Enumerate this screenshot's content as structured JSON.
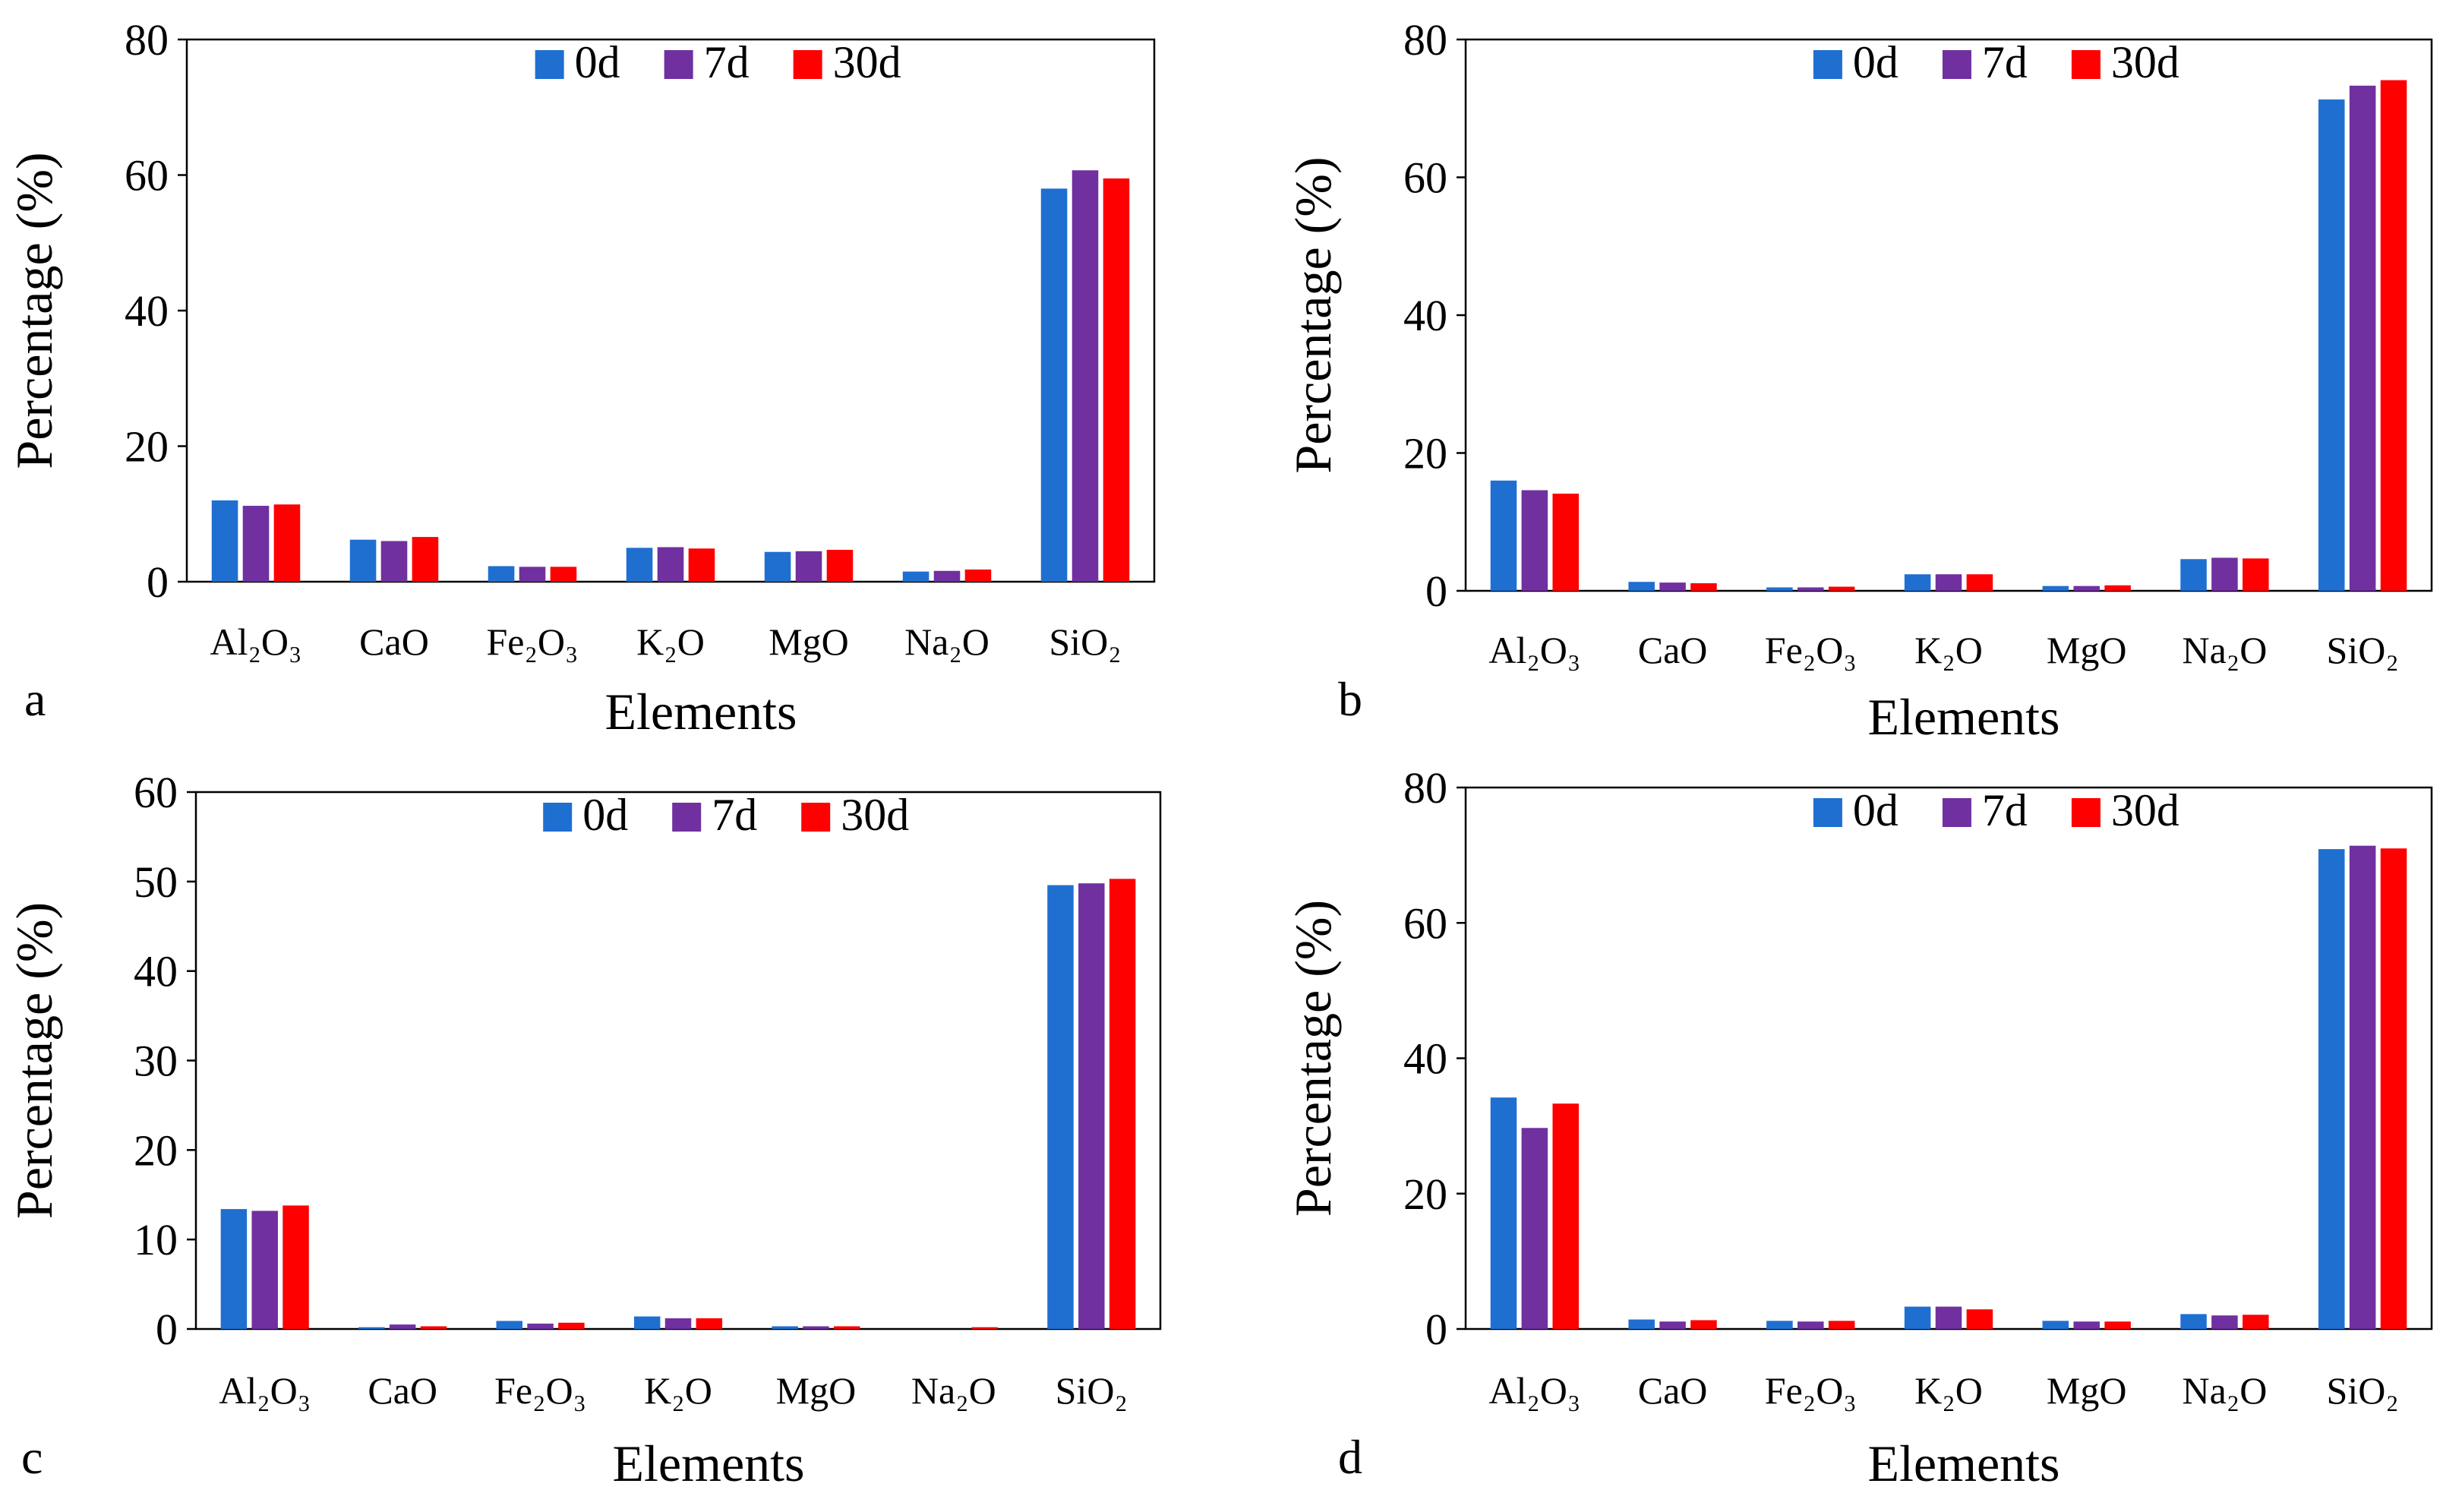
{
  "figure": {
    "colors": {
      "0d": "#1f6fd1",
      "7d": "#7030a0",
      "30d": "#ff0000"
    }
  },
  "chart_data": [
    {
      "panel": "a",
      "type": "bar",
      "xlabel": "Elements",
      "ylabel": "Percentage (%)",
      "ylim": [
        0,
        80
      ],
      "yticks": [
        0,
        20,
        40,
        60,
        80
      ],
      "legend_position": "top-center",
      "categories": [
        "Al₂O₃",
        "CaO",
        "Fe₂O₃",
        "K₂O",
        "MgO",
        "Na₂O",
        "SiO₂"
      ],
      "series": [
        {
          "name": "0d",
          "values": [
            12.0,
            6.2,
            2.3,
            5.0,
            4.4,
            1.5,
            58.0
          ]
        },
        {
          "name": "7d",
          "values": [
            11.2,
            6.0,
            2.2,
            5.1,
            4.5,
            1.6,
            60.7
          ]
        },
        {
          "name": "30d",
          "values": [
            11.4,
            6.6,
            2.2,
            4.9,
            4.7,
            1.8,
            59.5
          ]
        }
      ]
    },
    {
      "panel": "b",
      "type": "bar",
      "xlabel": "Elements",
      "ylabel": "Percentage (%)",
      "ylim": [
        0,
        80
      ],
      "yticks": [
        0,
        20,
        40,
        60,
        80
      ],
      "legend_position": "top-center",
      "categories": [
        "Al₂O₃",
        "CaO",
        "Fe₂O₃",
        "K₂O",
        "MgO",
        "Na₂O",
        "SiO₂"
      ],
      "series": [
        {
          "name": "0d",
          "values": [
            16.0,
            1.3,
            0.5,
            2.4,
            0.7,
            4.6,
            71.3
          ]
        },
        {
          "name": "7d",
          "values": [
            14.6,
            1.2,
            0.5,
            2.4,
            0.7,
            4.8,
            73.3
          ]
        },
        {
          "name": "30d",
          "values": [
            14.1,
            1.1,
            0.6,
            2.4,
            0.8,
            4.7,
            74.1
          ]
        }
      ]
    },
    {
      "panel": "c",
      "type": "bar",
      "xlabel": "Elements",
      "ylabel": "Percentage (%)",
      "ylim": [
        0,
        60
      ],
      "yticks": [
        0,
        10,
        20,
        30,
        40,
        50,
        60
      ],
      "legend_position": "top-center",
      "categories": [
        "Al₂O₃",
        "CaO",
        "Fe₂O₃",
        "K₂O",
        "MgO",
        "Na₂O",
        "SiO₂"
      ],
      "series": [
        {
          "name": "0d",
          "values": [
            13.4,
            0.2,
            0.9,
            1.4,
            0.3,
            0.0,
            49.6
          ]
        },
        {
          "name": "7d",
          "values": [
            13.2,
            0.5,
            0.6,
            1.2,
            0.3,
            0.0,
            49.8
          ]
        },
        {
          "name": "30d",
          "values": [
            13.8,
            0.3,
            0.7,
            1.2,
            0.3,
            0.2,
            50.3
          ]
        }
      ]
    },
    {
      "panel": "d",
      "type": "bar",
      "xlabel": "Elements",
      "ylabel": "Percentage (%)",
      "ylim": [
        0,
        80
      ],
      "yticks": [
        0,
        20,
        40,
        60,
        80
      ],
      "legend_position": "top-center",
      "categories": [
        "Al₂O₃",
        "CaO",
        "Fe₂O₃",
        "K₂O",
        "MgO",
        "Na₂O",
        "SiO₂"
      ],
      "series": [
        {
          "name": "0d",
          "values": [
            34.2,
            1.4,
            1.2,
            3.3,
            1.2,
            2.2,
            70.9
          ]
        },
        {
          "name": "7d",
          "values": [
            29.7,
            1.1,
            1.1,
            3.3,
            1.1,
            2.0,
            71.4
          ]
        },
        {
          "name": "30d",
          "values": [
            33.3,
            1.3,
            1.2,
            2.9,
            1.1,
            2.1,
            71.0
          ]
        }
      ]
    }
  ]
}
